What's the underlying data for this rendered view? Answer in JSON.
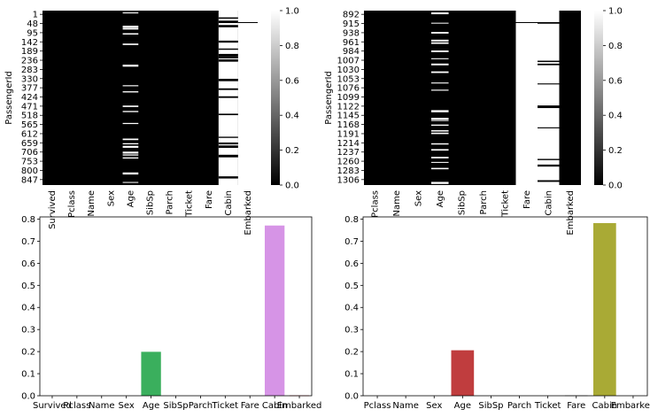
{
  "chart_data": [
    {
      "type": "heatmap",
      "panel": "top-left",
      "ylabel": "PassengerId",
      "columns": [
        "Survived",
        "Pclass",
        "Name",
        "Sex",
        "Age",
        "SibSp",
        "Parch",
        "Ticket",
        "Fare",
        "Cabin",
        "Embarked"
      ],
      "row_tick_labels": [
        "1",
        "48",
        "95",
        "142",
        "189",
        "236",
        "283",
        "330",
        "377",
        "424",
        "471",
        "518",
        "565",
        "612",
        "659",
        "706",
        "753",
        "800",
        "847"
      ],
      "missing_fraction": [
        0,
        0,
        0,
        0,
        0.2,
        0,
        0,
        0,
        0,
        0.77,
        0.002
      ],
      "colorbar": {
        "ticks": [
          "0.0",
          "0.2",
          "0.4",
          "0.6",
          "0.8",
          "1.0"
        ],
        "range": [
          0,
          1
        ],
        "cmap": "gray"
      }
    },
    {
      "type": "heatmap",
      "panel": "top-right",
      "ylabel": "PassengerId",
      "columns": [
        "Pclass",
        "Name",
        "Sex",
        "Age",
        "SibSp",
        "Parch",
        "Ticket",
        "Fare",
        "Cabin",
        "Embarked"
      ],
      "row_tick_labels": [
        "892",
        "915",
        "938",
        "961",
        "984",
        "1007",
        "1030",
        "1053",
        "1076",
        "1099",
        "1122",
        "1145",
        "1168",
        "1191",
        "1214",
        "1237",
        "1260",
        "1283",
        "1306"
      ],
      "missing_fraction": [
        0,
        0,
        0,
        0.21,
        0,
        0,
        0,
        0.002,
        0.78,
        0
      ],
      "colorbar": {
        "ticks": [
          "0.0",
          "0.2",
          "0.4",
          "0.6",
          "0.8",
          "1.0"
        ],
        "range": [
          0,
          1
        ],
        "cmap": "gray"
      }
    },
    {
      "type": "bar",
      "panel": "bottom-left",
      "categories": [
        "Survived",
        "Pclass",
        "Name",
        "Sex",
        "Age",
        "SibSp",
        "Parch",
        "Ticket",
        "Fare",
        "Cabin",
        "Embarked"
      ],
      "values": [
        0,
        0,
        0,
        0,
        0.199,
        0,
        0,
        0,
        0,
        0.771,
        0.002
      ],
      "colors": [
        "#3274a1",
        "#e1812c",
        "#3a923a",
        "#c03d3e",
        "#3aaf5d",
        "#845b53",
        "#d684bd",
        "#7f7f7f",
        "#a9aa35",
        "#d694e6",
        "#c7484a"
      ],
      "yticks": [
        "0.0",
        "0.1",
        "0.2",
        "0.3",
        "0.4",
        "0.5",
        "0.6",
        "0.7",
        "0.8"
      ],
      "ylim": [
        0,
        0.81
      ]
    },
    {
      "type": "bar",
      "panel": "bottom-right",
      "categories": [
        "Pclass",
        "Name",
        "Sex",
        "Age",
        "SibSp",
        "Parch",
        "Ticket",
        "Fare",
        "Cabin",
        "Embarked"
      ],
      "values": [
        0,
        0,
        0,
        0.206,
        0,
        0,
        0,
        0.002,
        0.782,
        0
      ],
      "colors": [
        "#3274a1",
        "#e1812c",
        "#3a923a",
        "#c03d3e",
        "#9372b2",
        "#845b53",
        "#d684bd",
        "#7f7f7f",
        "#a9aa35",
        "#3ba3ec"
      ],
      "yticks": [
        "0.0",
        "0.1",
        "0.2",
        "0.3",
        "0.4",
        "0.5",
        "0.6",
        "0.7",
        "0.8"
      ],
      "ylim": [
        0,
        0.81
      ]
    }
  ]
}
